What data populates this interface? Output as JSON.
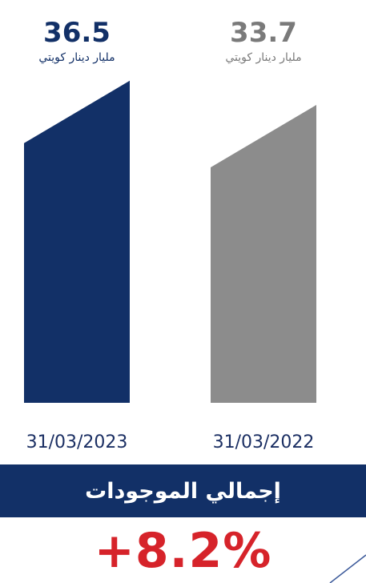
{
  "chart_data": {
    "type": "bar",
    "categories": [
      "31/03/2023",
      "31/03/2022"
    ],
    "values": [
      36.5,
      33.7
    ],
    "value_labels": [
      "36.5",
      "33.7"
    ],
    "unit_label": "مليار دينار كويتي",
    "colors": [
      "#123067",
      "#8c8c8c"
    ],
    "value_label_colors": [
      "#123067",
      "#7a7a7a"
    ],
    "title": "إجمالي الموجودات",
    "change_label": "+8.2%",
    "ylim": [
      0,
      40
    ]
  },
  "colors": {
    "banner_bg": "#123067",
    "change_text": "#d6232a"
  }
}
